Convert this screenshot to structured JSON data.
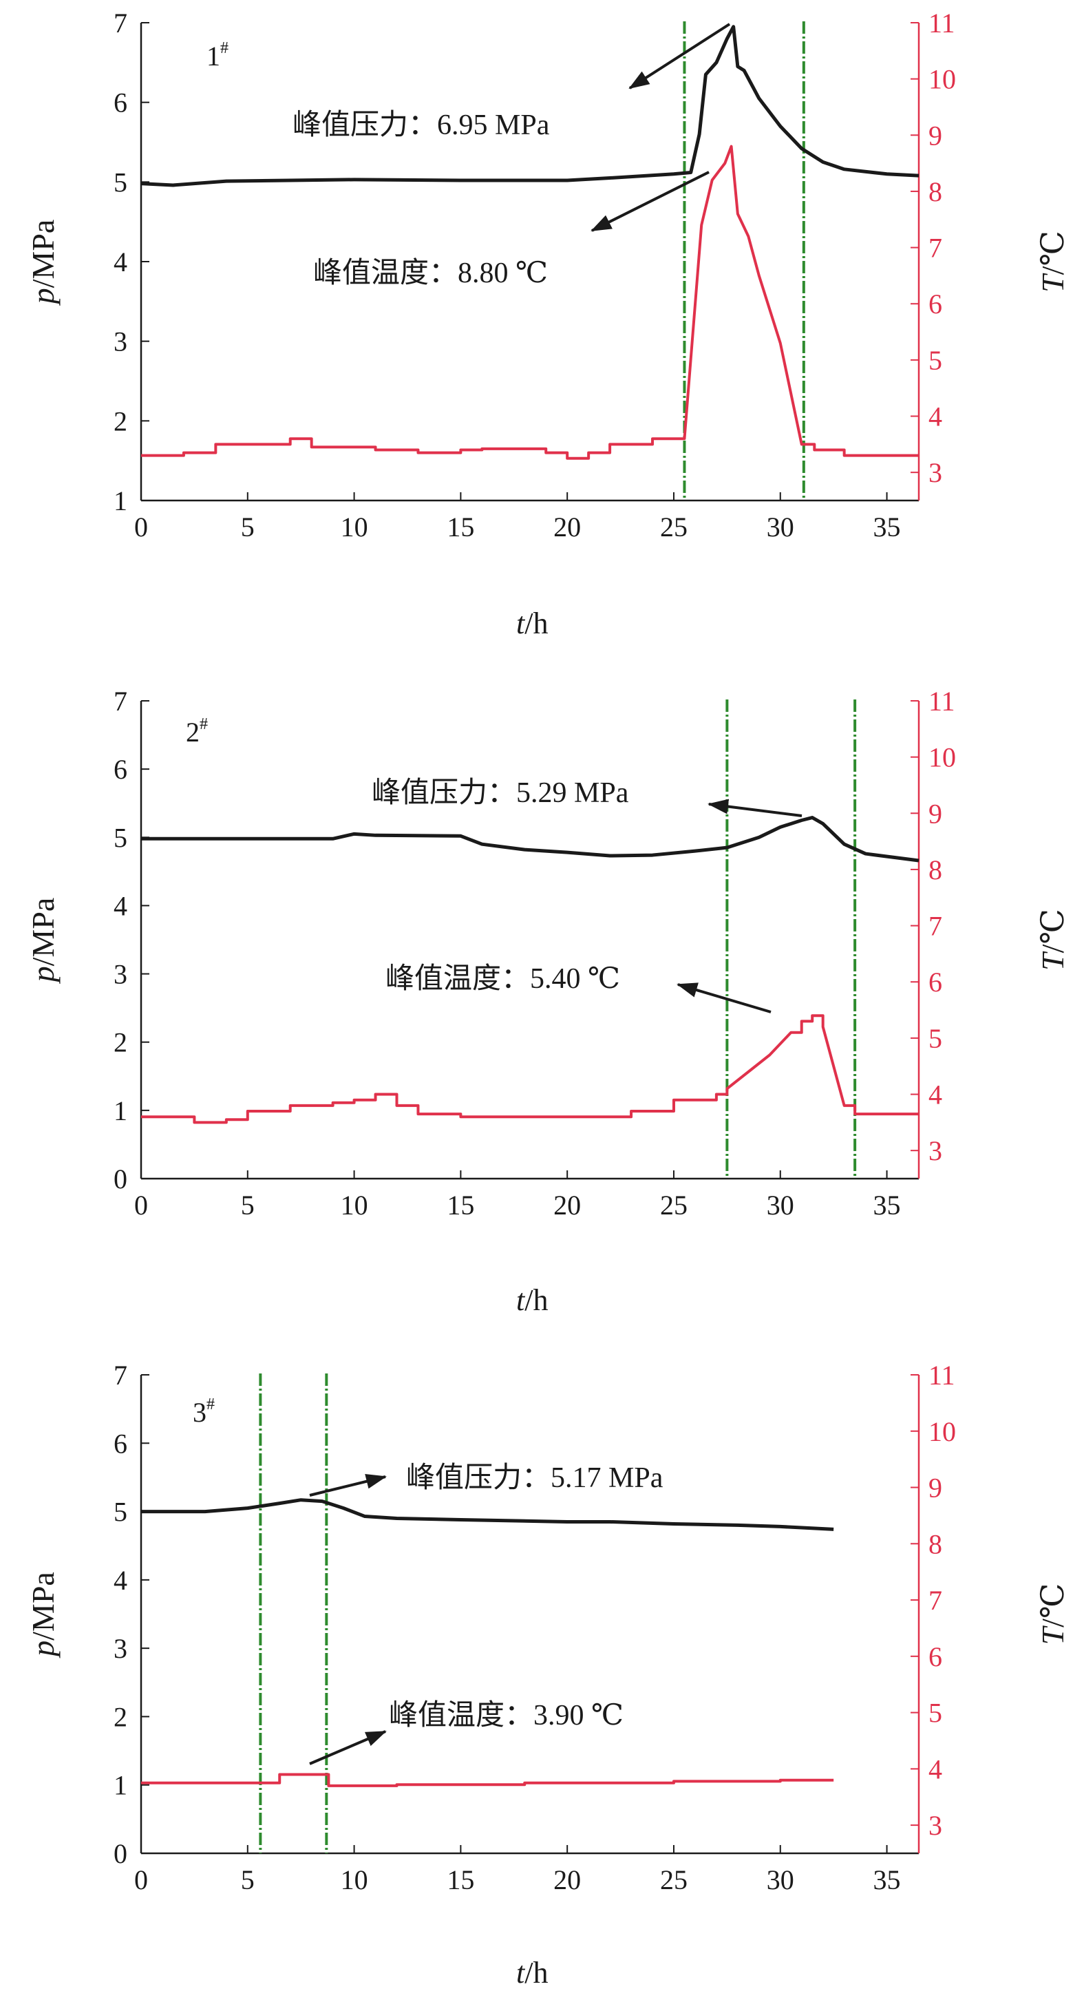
{
  "colors": {
    "pressure": "#1a1a1a",
    "temperature": "#e0314b",
    "marker": "#2e8b2e",
    "axis": "#1a1a1a"
  },
  "chart_data": [
    {
      "type": "line",
      "panel_label": "1",
      "panel_sup": "#",
      "xlabel_var": "t",
      "xlabel_unit": "/h",
      "ylabel_left_var": "p",
      "ylabel_left_unit": "/MPa",
      "ylabel_right_var": "T",
      "ylabel_right_unit": "/℃",
      "xlim": [
        0,
        36.5
      ],
      "ylim_left": [
        1,
        7
      ],
      "ylim_right": [
        2.5,
        11
      ],
      "x_ticks": [
        "0",
        "5",
        "10",
        "15",
        "20",
        "25",
        "30",
        "35"
      ],
      "yl_ticks": [
        "1",
        "2",
        "3",
        "4",
        "5",
        "6",
        "7"
      ],
      "yr_ticks": [
        "3",
        "4",
        "5",
        "6",
        "7",
        "8",
        "9",
        "10",
        "11"
      ],
      "vlines": [
        25.5,
        31.1
      ],
      "series": [
        {
          "axis": "left",
          "points": [
            [
              0,
              4.98
            ],
            [
              1.5,
              4.96
            ],
            [
              4,
              5.01
            ],
            [
              7,
              5.02
            ],
            [
              10,
              5.03
            ],
            [
              15,
              5.02
            ],
            [
              20,
              5.02
            ],
            [
              22,
              5.05
            ],
            [
              25,
              5.1
            ],
            [
              25.8,
              5.12
            ],
            [
              26.2,
              5.6
            ],
            [
              26.5,
              6.35
            ],
            [
              27,
              6.5
            ],
            [
              27.5,
              6.8
            ],
            [
              27.8,
              6.95
            ],
            [
              28,
              6.45
            ],
            [
              28.3,
              6.4
            ],
            [
              29,
              6.05
            ],
            [
              30,
              5.7
            ],
            [
              31,
              5.42
            ],
            [
              32,
              5.25
            ],
            [
              33,
              5.16
            ],
            [
              35,
              5.1
            ],
            [
              36.5,
              5.08
            ]
          ]
        },
        {
          "axis": "right",
          "step": true,
          "points": [
            [
              0,
              3.3
            ],
            [
              2,
              3.35
            ],
            [
              3.5,
              3.5
            ],
            [
              7,
              3.6
            ],
            [
              8,
              3.45
            ],
            [
              11,
              3.4
            ],
            [
              13,
              3.35
            ],
            [
              15,
              3.4
            ],
            [
              16,
              3.42
            ],
            [
              19,
              3.35
            ],
            [
              20,
              3.25
            ],
            [
              21,
              3.35
            ],
            [
              22,
              3.5
            ],
            [
              24,
              3.6
            ],
            [
              25.5,
              3.6
            ],
            [
              25.9,
              5.5
            ],
            [
              26.3,
              7.4
            ],
            [
              26.8,
              8.2
            ],
            [
              27.4,
              8.5
            ],
            [
              27.7,
              8.8
            ],
            [
              28,
              7.6
            ],
            [
              28.5,
              7.2
            ],
            [
              29,
              6.5
            ],
            [
              30,
              5.3
            ],
            [
              31,
              3.5
            ],
            [
              31.6,
              3.4
            ],
            [
              33,
              3.3
            ],
            [
              36.5,
              3.3
            ]
          ]
        }
      ],
      "annotations": [
        {
          "text": "峰值压力：6.95 MPa",
          "target": [
            27.8,
            6.95
          ],
          "axis": "left"
        },
        {
          "text": "峰值温度：8.80 ℃",
          "target": [
            27.7,
            8.8
          ],
          "axis": "right"
        }
      ]
    },
    {
      "type": "line",
      "panel_label": "2",
      "panel_sup": "#",
      "xlabel_var": "t",
      "xlabel_unit": "/h",
      "ylabel_left_var": "p",
      "ylabel_left_unit": "/MPa",
      "ylabel_right_var": "T",
      "ylabel_right_unit": "/℃",
      "xlim": [
        0,
        36.5
      ],
      "ylim_left": [
        0,
        7
      ],
      "ylim_right": [
        2.5,
        11
      ],
      "x_ticks": [
        "0",
        "5",
        "10",
        "15",
        "20",
        "25",
        "30",
        "35"
      ],
      "yl_ticks": [
        "0",
        "1",
        "2",
        "3",
        "4",
        "5",
        "6",
        "7"
      ],
      "yr_ticks": [
        "3",
        "4",
        "5",
        "6",
        "7",
        "8",
        "9",
        "10",
        "11"
      ],
      "vlines": [
        27.5,
        33.5
      ],
      "series": [
        {
          "axis": "left",
          "points": [
            [
              0,
              4.98
            ],
            [
              5,
              4.98
            ],
            [
              9,
              4.98
            ],
            [
              10,
              5.05
            ],
            [
              11,
              5.03
            ],
            [
              15,
              5.02
            ],
            [
              16,
              4.9
            ],
            [
              18,
              4.82
            ],
            [
              20,
              4.78
            ],
            [
              22,
              4.73
            ],
            [
              24,
              4.74
            ],
            [
              26,
              4.8
            ],
            [
              27.5,
              4.85
            ],
            [
              29,
              5.0
            ],
            [
              30,
              5.15
            ],
            [
              31,
              5.25
            ],
            [
              31.5,
              5.29
            ],
            [
              32,
              5.2
            ],
            [
              33,
              4.9
            ],
            [
              34,
              4.76
            ],
            [
              36.5,
              4.66
            ]
          ]
        },
        {
          "axis": "right",
          "step": true,
          "points": [
            [
              0,
              3.6
            ],
            [
              2,
              3.6
            ],
            [
              2.5,
              3.5
            ],
            [
              4,
              3.55
            ],
            [
              5,
              3.7
            ],
            [
              7,
              3.8
            ],
            [
              9,
              3.85
            ],
            [
              10,
              3.9
            ],
            [
              11,
              4.0
            ],
            [
              12,
              3.8
            ],
            [
              13,
              3.65
            ],
            [
              15,
              3.6
            ],
            [
              19,
              3.6
            ],
            [
              22,
              3.6
            ],
            [
              23,
              3.7
            ],
            [
              25,
              3.9
            ],
            [
              27,
              4.0
            ],
            [
              27.5,
              4.1
            ],
            [
              28.5,
              4.4
            ],
            [
              29.5,
              4.7
            ],
            [
              30.5,
              5.1
            ],
            [
              31,
              5.3
            ],
            [
              31.5,
              5.4
            ],
            [
              32,
              5.2
            ],
            [
              32.5,
              4.5
            ],
            [
              33,
              3.8
            ],
            [
              33.5,
              3.65
            ],
            [
              36.5,
              3.65
            ]
          ]
        }
      ],
      "annotations": [
        {
          "text": "峰值压力：5.29 MPa",
          "target": [
            31.3,
            5.29
          ],
          "axis": "left"
        },
        {
          "text": "峰值温度：5.40 ℃",
          "target": [
            31.5,
            5.4
          ],
          "axis": "right"
        }
      ]
    },
    {
      "type": "line",
      "panel_label": "3",
      "panel_sup": "#",
      "xlabel_var": "t",
      "xlabel_unit": "/h",
      "ylabel_left_var": "p",
      "ylabel_left_unit": "/MPa",
      "ylabel_right_var": "T",
      "ylabel_right_unit": "/℃",
      "xlim": [
        0,
        36.5
      ],
      "ylim_left": [
        0,
        7
      ],
      "ylim_right": [
        2.5,
        11
      ],
      "x_ticks": [
        "0",
        "5",
        "10",
        "15",
        "20",
        "25",
        "30",
        "35"
      ],
      "yl_ticks": [
        "0",
        "1",
        "2",
        "3",
        "4",
        "5",
        "6",
        "7"
      ],
      "yr_ticks": [
        "3",
        "4",
        "5",
        "6",
        "7",
        "8",
        "9",
        "10",
        "11"
      ],
      "vlines": [
        5.6,
        8.7
      ],
      "series": [
        {
          "axis": "left",
          "points": [
            [
              0,
              5.0
            ],
            [
              3,
              5.0
            ],
            [
              5,
              5.05
            ],
            [
              6.5,
              5.12
            ],
            [
              7.5,
              5.17
            ],
            [
              8.5,
              5.15
            ],
            [
              9.5,
              5.05
            ],
            [
              10.5,
              4.93
            ],
            [
              12,
              4.9
            ],
            [
              15,
              4.88
            ],
            [
              20,
              4.85
            ],
            [
              22,
              4.85
            ],
            [
              25,
              4.82
            ],
            [
              28,
              4.8
            ],
            [
              30,
              4.78
            ],
            [
              32.5,
              4.74
            ]
          ]
        },
        {
          "axis": "right",
          "step": true,
          "points": [
            [
              0,
              3.75
            ],
            [
              5.6,
              3.75
            ],
            [
              6.5,
              3.9
            ],
            [
              8.7,
              3.9
            ],
            [
              8.8,
              3.7
            ],
            [
              12,
              3.72
            ],
            [
              18,
              3.75
            ],
            [
              25,
              3.78
            ],
            [
              30,
              3.8
            ],
            [
              32.5,
              3.8
            ]
          ]
        }
      ],
      "annotations": [
        {
          "text": "峰值压力：5.17 MPa",
          "target": [
            7.5,
            5.17
          ],
          "axis": "left"
        },
        {
          "text": "峰值温度：3.90 ℃",
          "target": [
            7.5,
            3.9
          ],
          "axis": "right"
        }
      ]
    }
  ]
}
